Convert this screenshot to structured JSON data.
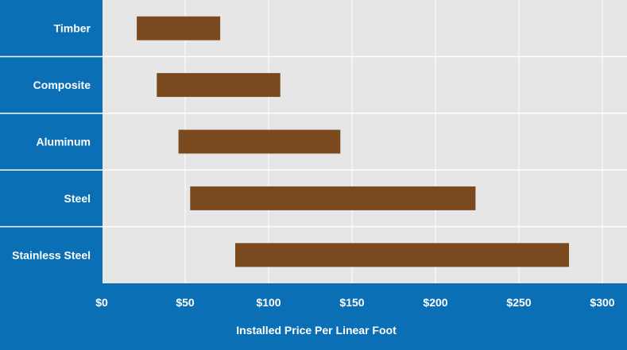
{
  "colors": {
    "panel": "#0b6fb6",
    "plot_background": "#e6e6e6",
    "gridline": "#ffffff",
    "bar": "#7a4a1e",
    "text": "#ffffff"
  },
  "chart_data": {
    "type": "bar",
    "orientation": "horizontal-range",
    "title": "",
    "xlabel": "Installed Price Per Linear Foot",
    "ylabel": "",
    "xlim": [
      0,
      300
    ],
    "grid": true,
    "ticks": [
      {
        "value": 0,
        "label": "$0"
      },
      {
        "value": 50,
        "label": "$50"
      },
      {
        "value": 100,
        "label": "$100"
      },
      {
        "value": 150,
        "label": "$150"
      },
      {
        "value": 200,
        "label": "$200"
      },
      {
        "value": 250,
        "label": "$250"
      },
      {
        "value": 300,
        "label": "$300"
      }
    ],
    "categories": [
      "Timber",
      "Composite",
      "Aluminum",
      "Steel",
      "Stainless Steel"
    ],
    "ranges": [
      {
        "category": "Timber",
        "low": 21,
        "high": 71
      },
      {
        "category": "Composite",
        "low": 33,
        "high": 107
      },
      {
        "category": "Aluminum",
        "low": 46,
        "high": 143
      },
      {
        "category": "Steel",
        "low": 53,
        "high": 224
      },
      {
        "category": "Stainless Steel",
        "low": 80,
        "high": 280
      }
    ]
  }
}
